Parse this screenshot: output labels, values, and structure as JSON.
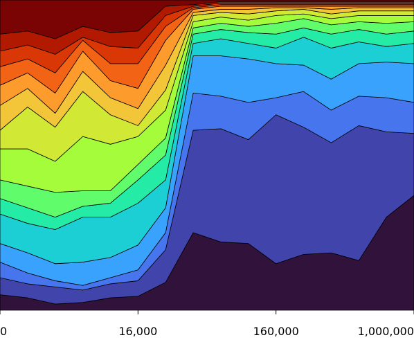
{
  "chart_data": {
    "type": "area",
    "stacked": true,
    "ylim": [
      0,
      100
    ],
    "categories": [
      "0",
      null,
      null,
      null,
      null,
      "16,000",
      null,
      null,
      null,
      null,
      "160,000",
      null,
      null,
      null,
      null,
      "1,000,000"
    ],
    "series": [
      {
        "color": "#30123b",
        "values": [
          5,
          4,
          2,
          2.5,
          4,
          4.5,
          9,
          25,
          22,
          21.5,
          15,
          18,
          18.5,
          16,
          30,
          37
        ]
      },
      {
        "color": "#4145ab",
        "values": [
          5.5,
          4.5,
          5.5,
          4,
          4.5,
          5,
          10.5,
          33,
          36.5,
          33.5,
          48,
          41,
          35.5,
          43.5,
          27.5,
          20
        ]
      },
      {
        "color": "#4675ed",
        "values": [
          5,
          3.5,
          2,
          1.5,
          2,
          3.5,
          5.5,
          12,
          10.5,
          12,
          5.5,
          11.5,
          10.5,
          9.5,
          11,
          10
        ]
      },
      {
        "color": "#39a2fc",
        "values": [
          6,
          6.5,
          5.5,
          7.5,
          6.5,
          8,
          8,
          12,
          13,
          14,
          11,
          8.5,
          10,
          10.5,
          11.5,
          12.5
        ]
      },
      {
        "color": "#1bcfd4",
        "values": [
          9.5,
          9.5,
          11,
          14.5,
          13,
          13.5,
          9,
          4,
          5.5,
          5,
          5,
          9,
          10,
          7,
          5,
          6.5
        ]
      },
      {
        "color": "#24eca6",
        "values": [
          5,
          5,
          4,
          3.5,
          4.5,
          7.5,
          8,
          3,
          3,
          3.5,
          4.5,
          3,
          4.5,
          4,
          4,
          4
        ]
      },
      {
        "color": "#61fc6c",
        "values": [
          6,
          7,
          8,
          5,
          4,
          5,
          5.5,
          2,
          2,
          2,
          3.5,
          3,
          3,
          2.5,
          3.5,
          3
        ]
      },
      {
        "color": "#a4fc3b",
        "values": [
          10,
          12,
          10,
          17.5,
          15,
          9,
          9,
          2,
          2,
          2,
          2.5,
          1.5,
          2,
          2,
          2.5,
          2
        ]
      },
      {
        "color": "#d1e834",
        "values": [
          6,
          13.5,
          11,
          14.5,
          9.5,
          3.5,
          6.5,
          2,
          1.5,
          2,
          1.5,
          1.5,
          1.5,
          1.5,
          1.5,
          1.5
        ]
      },
      {
        "color": "#f3c63a",
        "values": [
          8,
          6,
          4.5,
          6.5,
          5.5,
          5.5,
          8,
          1,
          1,
          1.5,
          1,
          0.5,
          1.5,
          1,
          1,
          1
        ]
      },
      {
        "color": "#fe9b2d",
        "values": [
          6.5,
          5,
          6.5,
          6.5,
          5.5,
          6.5,
          8,
          1,
          1,
          1,
          0.5,
          0.5,
          1,
          0.5,
          0.5,
          0.5
        ]
      },
      {
        "color": "#f36315",
        "values": [
          6,
          4.5,
          6.5,
          3.5,
          5.5,
          8,
          4.5,
          0.5,
          0.5,
          0.5,
          0.5,
          0.5,
          0.5,
          0.5,
          0.5,
          0.5
        ]
      },
      {
        "color": "#d93806",
        "values": [
          5,
          4.5,
          6,
          1,
          5.5,
          5,
          3.5,
          0.5,
          0.5,
          0.5,
          0.5,
          0.5,
          0.5,
          0.5,
          0.5,
          0.5
        ]
      },
      {
        "color": "#b11901",
        "values": [
          5.5,
          4.5,
          5,
          3.5,
          4.5,
          5.5,
          3,
          0.5,
          0.5,
          0.5,
          0.5,
          0.5,
          0.5,
          0.5,
          0.5,
          0.5
        ]
      },
      {
        "color": "#7a0403",
        "values": [
          11,
          10,
          12.5,
          8.5,
          10.5,
          10,
          2,
          1.5,
          0.5,
          0.5,
          0.5,
          0.5,
          0.5,
          0.5,
          0.5,
          0.5
        ]
      }
    ]
  }
}
